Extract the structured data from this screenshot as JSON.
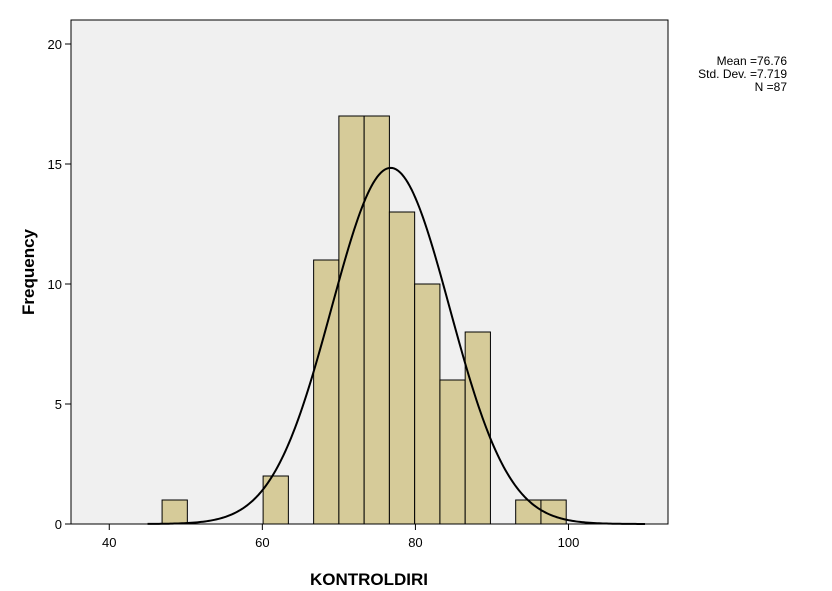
{
  "chart_data": {
    "type": "bar",
    "subtype": "histogram_with_normal_curve",
    "title": "",
    "xlabel": "KONTROLDIRI",
    "ylabel": "Frequency",
    "xlim": [
      35,
      113
    ],
    "ylim": [
      0,
      21
    ],
    "x_ticks": [
      40,
      60,
      80,
      100
    ],
    "y_ticks": [
      0,
      5,
      10,
      15,
      20
    ],
    "bin_width": 3.3,
    "bins": [
      {
        "start": 46.9,
        "end": 50.2,
        "count": 1
      },
      {
        "start": 60.1,
        "end": 63.4,
        "count": 2
      },
      {
        "start": 66.7,
        "end": 70.0,
        "count": 11
      },
      {
        "start": 70.0,
        "end": 73.3,
        "count": 17
      },
      {
        "start": 73.3,
        "end": 76.6,
        "count": 17
      },
      {
        "start": 76.6,
        "end": 79.9,
        "count": 13
      },
      {
        "start": 79.9,
        "end": 83.2,
        "count": 10
      },
      {
        "start": 83.2,
        "end": 86.5,
        "count": 6
      },
      {
        "start": 86.5,
        "end": 89.8,
        "count": 8
      },
      {
        "start": 93.1,
        "end": 96.4,
        "count": 1
      },
      {
        "start": 96.4,
        "end": 99.7,
        "count": 1
      }
    ],
    "normal_curve": {
      "mean": 76.76,
      "std": 7.719,
      "n": 87
    },
    "stats_text": [
      "Mean =76.76",
      "Std. Dev. =7.719",
      "N =87"
    ],
    "grid": false,
    "colors": {
      "bar_fill": "#d6cb99",
      "bar_stroke": "#000000",
      "plot_bg": "#f0f0f0",
      "curve": "#000000"
    }
  }
}
